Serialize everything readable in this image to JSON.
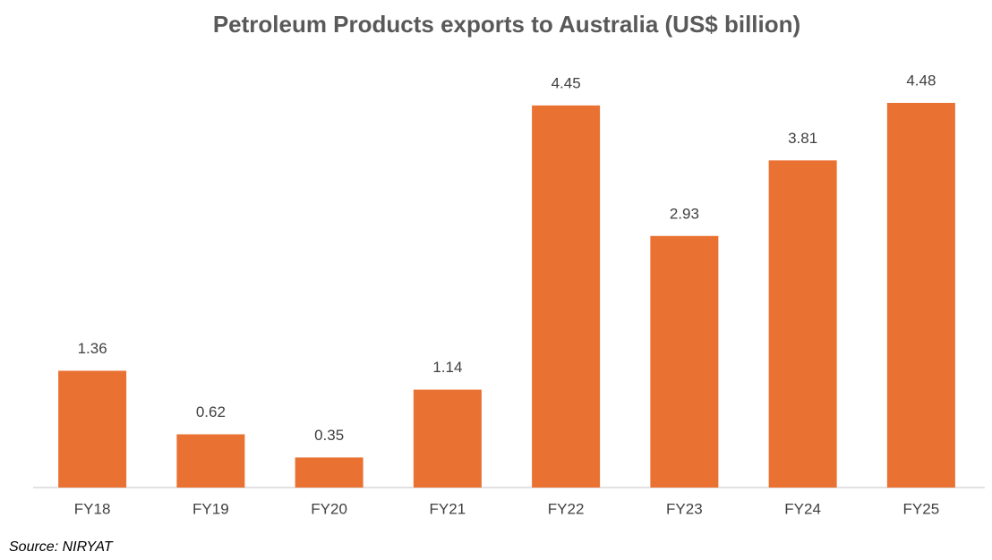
{
  "chart_data": {
    "type": "bar",
    "title": "Petroleum Products exports to Australia (US$ billion)",
    "categories": [
      "FY18",
      "FY19",
      "FY20",
      "FY21",
      "FY22",
      "FY23",
      "FY24",
      "FY25"
    ],
    "values": [
      1.36,
      0.62,
      0.35,
      1.14,
      4.45,
      2.93,
      3.81,
      4.48
    ],
    "color": "#e97132",
    "source": "Source: NIRYAT"
  }
}
